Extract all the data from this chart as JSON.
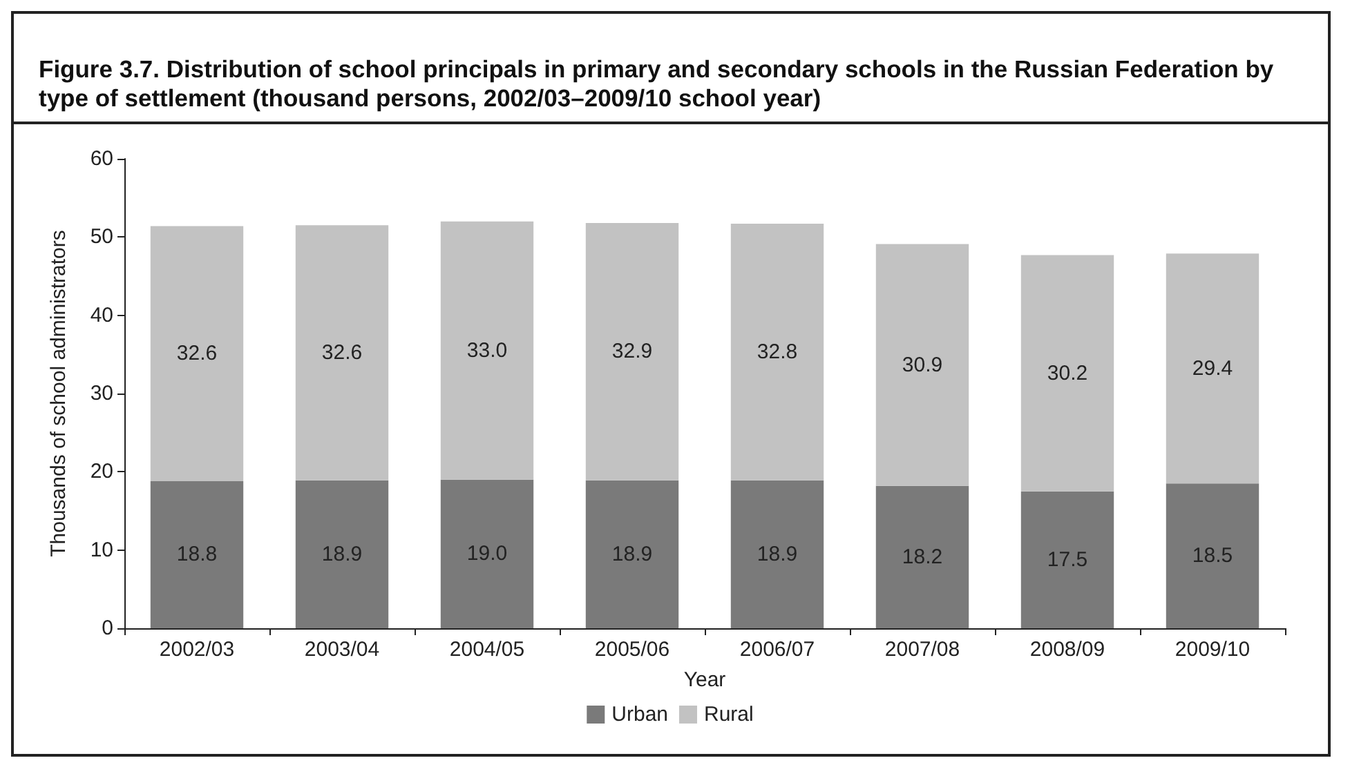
{
  "chart_data": {
    "type": "bar",
    "title": "Figure 3.7. Distribution of school principals in primary and secondary schools in the Russian Federation by type of settlement (thousand persons, 2002/03–2009/10 school year)",
    "xlabel": "Year",
    "ylabel": "Thousands of school administrators",
    "categories": [
      "2002/03",
      "2003/04",
      "2004/05",
      "2005/06",
      "2006/07",
      "2007/08",
      "2008/09",
      "2009/10"
    ],
    "series": [
      {
        "name": "Urban",
        "color": "#7a7a7a",
        "values": [
          18.8,
          18.9,
          19.0,
          18.9,
          18.9,
          18.2,
          17.5,
          18.5
        ],
        "value_labels": [
          "18.8",
          "18.9",
          "19.0",
          "18.9",
          "18.9",
          "18.2",
          "17.5",
          "18.5"
        ]
      },
      {
        "name": "Rural",
        "color": "#c2c2c2",
        "values": [
          32.6,
          32.6,
          33.0,
          32.9,
          32.8,
          30.9,
          30.2,
          29.4
        ],
        "value_labels": [
          "32.6",
          "32.6",
          "33.0",
          "32.9",
          "32.8",
          "30.9",
          "30.2",
          "29.4"
        ]
      }
    ],
    "stacked": true,
    "ylim": [
      0,
      60
    ],
    "yticks": [
      0,
      10,
      20,
      30,
      40,
      50,
      60
    ],
    "grid": false,
    "legend": "bottom"
  }
}
